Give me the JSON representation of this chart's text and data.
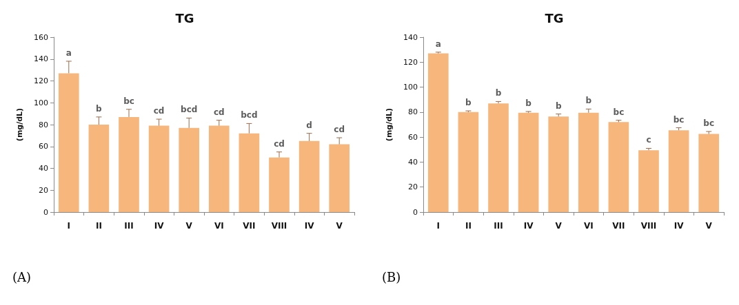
{
  "chart_data": [
    {
      "type": "bar",
      "title": "TG",
      "ylabel": "(mg/dL)",
      "categories": [
        "I",
        "II",
        "III",
        "IV",
        "V",
        "VI",
        "VII",
        "VIII",
        "IV",
        "V"
      ],
      "series": [
        {
          "color": "#f6b67c",
          "values": [
            127,
            80,
            87,
            79,
            77,
            79,
            72,
            50,
            65,
            62
          ],
          "errors": [
            11,
            7,
            7,
            6,
            9,
            5,
            9,
            5,
            7,
            6
          ]
        }
      ],
      "ylim": [
        0,
        160
      ],
      "yticks": [
        0,
        20,
        40,
        60,
        80,
        100,
        120,
        140,
        160
      ],
      "grid": false,
      "annotations": [
        "a",
        "b",
        "bc",
        "cd",
        "bcd",
        "cd",
        "bcd",
        "cd",
        "d",
        "cd",
        "(A)"
      ]
    },
    {
      "type": "bar",
      "title": "TG",
      "ylabel": "(mg/dL)",
      "categories": [
        "I",
        "II",
        "III",
        "IV",
        "V",
        "VI",
        "VII",
        "VIII",
        "IV",
        "V"
      ],
      "series": [
        {
          "color": "#f6b67c",
          "values": [
            127,
            80,
            87,
            79.5,
            76.5,
            79.5,
            72,
            49.5,
            65.5,
            62.5
          ],
          "errors": [
            1,
            1,
            1.5,
            1,
            2,
            3,
            1.5,
            1.5,
            2,
            2
          ]
        }
      ],
      "ylim": [
        0,
        140
      ],
      "yticks": [
        0,
        20,
        40,
        60,
        80,
        100,
        120,
        140
      ],
      "grid": false,
      "annotations": [
        "a",
        "b",
        "b",
        "b",
        "b",
        "b",
        "bc",
        "c",
        "bc",
        "bc",
        "(B)"
      ]
    }
  ]
}
